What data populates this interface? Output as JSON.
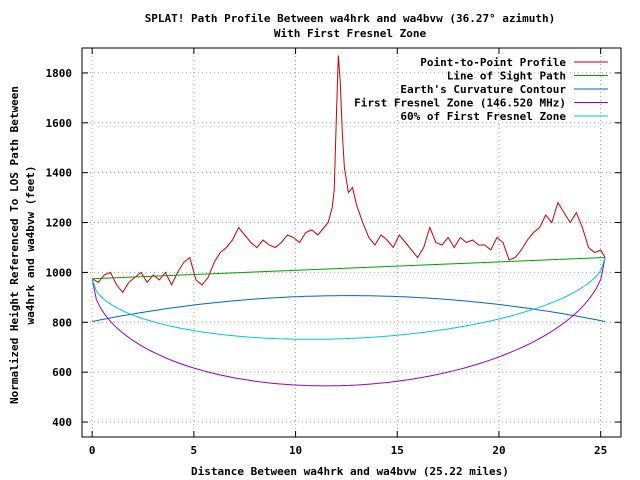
{
  "chart_data": {
    "type": "line",
    "title": "SPLAT! Path Profile Between wa4hrk and wa4bvw (36.27° azimuth)",
    "subtitle": "With First Fresnel Zone",
    "xlabel": "Distance Between wa4hrk and wa4bvw (25.22 miles)",
    "ylabel_line1": "Normalized Height Referenced To LOS Path Between",
    "ylabel_line2": "wa4hrk and wa4bvw (feet)",
    "xlim": [
      -0.5,
      26
    ],
    "ylim": [
      340,
      1900
    ],
    "xticks": [
      0,
      5,
      10,
      15,
      20,
      25
    ],
    "yticks": [
      400,
      600,
      800,
      1000,
      1200,
      1400,
      1600,
      1800
    ],
    "grid": true,
    "legend_position": "top-right",
    "series": [
      {
        "name": "Point-to-Point Profile",
        "color": "#cc0000",
        "x": [
          0,
          0.3,
          0.6,
          0.9,
          1.2,
          1.5,
          1.8,
          2.1,
          2.4,
          2.7,
          3.0,
          3.3,
          3.6,
          3.9,
          4.2,
          4.5,
          4.8,
          5.1,
          5.4,
          5.7,
          6.0,
          6.3,
          6.6,
          6.9,
          7.2,
          7.5,
          7.8,
          8.1,
          8.4,
          8.7,
          9.0,
          9.3,
          9.6,
          9.9,
          10.2,
          10.5,
          10.8,
          11.1,
          11.4,
          11.6,
          11.8,
          11.9,
          12.0,
          12.1,
          12.2,
          12.3,
          12.4,
          12.6,
          12.8,
          13.0,
          13.3,
          13.6,
          13.9,
          14.2,
          14.5,
          14.8,
          15.1,
          15.4,
          15.7,
          16.0,
          16.3,
          16.6,
          16.9,
          17.2,
          17.5,
          17.8,
          18.1,
          18.4,
          18.7,
          19.0,
          19.3,
          19.6,
          19.9,
          20.2,
          20.5,
          20.8,
          21.1,
          21.4,
          21.7,
          22.0,
          22.3,
          22.6,
          22.9,
          23.2,
          23.5,
          23.8,
          24.1,
          24.4,
          24.7,
          25.0,
          25.22
        ],
        "y": [
          975,
          960,
          990,
          1000,
          950,
          920,
          960,
          980,
          1000,
          960,
          990,
          970,
          1000,
          950,
          1000,
          1040,
          1060,
          970,
          950,
          980,
          1040,
          1080,
          1100,
          1130,
          1180,
          1150,
          1120,
          1100,
          1130,
          1110,
          1100,
          1120,
          1150,
          1140,
          1120,
          1160,
          1170,
          1150,
          1180,
          1200,
          1260,
          1330,
          1600,
          1870,
          1760,
          1560,
          1420,
          1320,
          1340,
          1270,
          1200,
          1140,
          1110,
          1150,
          1130,
          1100,
          1150,
          1120,
          1090,
          1060,
          1100,
          1180,
          1120,
          1110,
          1140,
          1100,
          1140,
          1120,
          1130,
          1110,
          1110,
          1090,
          1140,
          1120,
          1050,
          1060,
          1090,
          1130,
          1160,
          1180,
          1230,
          1200,
          1280,
          1240,
          1200,
          1240,
          1180,
          1100,
          1080,
          1090,
          1060
        ]
      },
      {
        "name": "Line of Sight Path",
        "color": "#00a000",
        "x": [
          0,
          25.22
        ],
        "y": [
          975,
          1060
        ]
      },
      {
        "name": "Earth's Curvature Contour",
        "color": "#0066cc",
        "curve": "parabola",
        "x": [
          0,
          12.61,
          25.22
        ],
        "y": [
          803,
          907,
          803
        ]
      },
      {
        "name": "First Fresnel Zone (146.520 MHz)",
        "color": "#9900cc",
        "curve": "ellipse",
        "x": [
          0,
          12.61,
          25.22
        ],
        "y": [
          975,
          547,
          1060
        ]
      },
      {
        "name": "60% of First Fresnel Zone",
        "color": "#00cccc",
        "curve": "ellipse",
        "x": [
          0,
          12.61,
          25.22
        ],
        "y": [
          975,
          735,
          1060
        ]
      }
    ]
  }
}
